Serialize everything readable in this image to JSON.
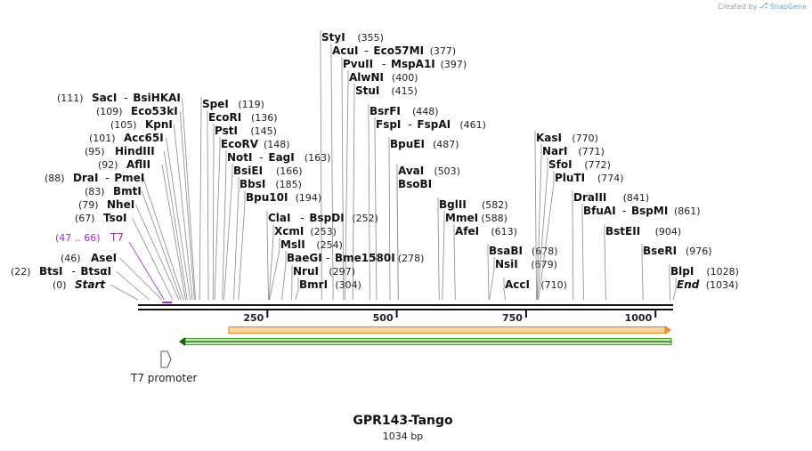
{
  "credit": {
    "prefix": "Created by",
    "brand": "SnapGene"
  },
  "map": {
    "title": "GPR143-Tango",
    "length_label": "1034 bp",
    "length": 1034,
    "ticks": [
      "250",
      "500",
      "750",
      "1000"
    ],
    "tick_values": [
      250,
      500,
      750,
      1000
    ],
    "sites": [
      {
        "name": "StyI",
        "pos": "(355)",
        "at": 355
      },
      {
        "name": "AcuI",
        "name2": "Eco57MI",
        "pos": "(377)",
        "at": 377
      },
      {
        "name": "PvuII",
        "name2": "MspA1I",
        "pos": "(397)",
        "at": 397
      },
      {
        "name": "AlwNI",
        "pos": "(400)",
        "at": 400
      },
      {
        "name": "StuI",
        "pos": "(415)",
        "at": 415
      },
      {
        "name": "BsrFI",
        "pos": "(448)",
        "at": 448
      },
      {
        "name": "FspI",
        "name2": "FspAI",
        "pos": "(461)",
        "at": 461
      },
      {
        "name": "BpuEI",
        "pos": "(487)",
        "at": 487
      },
      {
        "name": "AvaI",
        "pos": "(503)",
        "at": 503
      },
      {
        "name": "BsoBI",
        "pos": "",
        "at": 503
      },
      {
        "name": "SacI",
        "name2": "BsiHKAI",
        "pos": "(111)",
        "at": 111
      },
      {
        "name": "Eco53kI",
        "pos": "(109)",
        "at": 109
      },
      {
        "name": "KpnI",
        "pos": "(105)",
        "at": 105
      },
      {
        "name": "Acc65I",
        "pos": "(101)",
        "at": 101
      },
      {
        "name": "HindIII",
        "pos": "(95)",
        "at": 95
      },
      {
        "name": "AflII",
        "pos": "(92)",
        "at": 92
      },
      {
        "name": "DraI",
        "name2": "PmeI",
        "pos": "(88)",
        "at": 88
      },
      {
        "name": "BmtI",
        "pos": "(83)",
        "at": 83
      },
      {
        "name": "NheI",
        "pos": "(79)",
        "at": 79
      },
      {
        "name": "TsoI",
        "pos": "(67)",
        "at": 67
      },
      {
        "name": "AseI",
        "pos": "(46)",
        "at": 46
      },
      {
        "name": "BtsI",
        "name2": "BtsαI",
        "pos": "(22)",
        "at": 22
      },
      {
        "name": "Start",
        "pos": "(0)",
        "at": 0
      },
      {
        "name": "SpeI",
        "pos": "(119)",
        "at": 119
      },
      {
        "name": "EcoRI",
        "pos": "(136)",
        "at": 136
      },
      {
        "name": "PstI",
        "pos": "(145)",
        "at": 145
      },
      {
        "name": "EcoRV",
        "pos": "(148)",
        "at": 148
      },
      {
        "name": "NotI",
        "name2": "EagI",
        "pos": "(163)",
        "at": 163
      },
      {
        "name": "BsiEI",
        "pos": "(166)",
        "at": 166
      },
      {
        "name": "BbsI",
        "pos": "(185)",
        "at": 185
      },
      {
        "name": "Bpu10I",
        "pos": "(194)",
        "at": 194
      },
      {
        "name": "ClaI",
        "name2": "BspDI",
        "pos": "(252)",
        "at": 252
      },
      {
        "name": "XcmI",
        "pos": "(253)",
        "at": 253
      },
      {
        "name": "MslI",
        "pos": "(254)",
        "at": 254
      },
      {
        "name": "BaeGI",
        "name2": "Bme1580I",
        "pos": "(278)",
        "at": 278
      },
      {
        "name": "NruI",
        "pos": "(297)",
        "at": 297
      },
      {
        "name": "BmrI",
        "pos": "(304)",
        "at": 304
      },
      {
        "name": "BglII",
        "pos": "(582)",
        "at": 582
      },
      {
        "name": "MmeI",
        "pos": "(588)",
        "at": 588
      },
      {
        "name": "AfeI",
        "pos": "(613)",
        "at": 613
      },
      {
        "name": "BsaBI",
        "pos": "(678)",
        "at": 678
      },
      {
        "name": "NsiI",
        "pos": "(679)",
        "at": 679
      },
      {
        "name": "AccI",
        "pos": "(710)",
        "at": 710
      },
      {
        "name": "KasI",
        "pos": "(770)",
        "at": 770
      },
      {
        "name": "NarI",
        "pos": "(771)",
        "at": 771
      },
      {
        "name": "SfoI",
        "pos": "(772)",
        "at": 772
      },
      {
        "name": "PluTI",
        "pos": "(774)",
        "at": 774
      },
      {
        "name": "DraIII",
        "pos": "(841)",
        "at": 841
      },
      {
        "name": "BfuAI",
        "name2": "BspMI",
        "pos": "(861)",
        "at": 861
      },
      {
        "name": "BstEII",
        "pos": "(904)",
        "at": 904
      },
      {
        "name": "BseRI",
        "pos": "(976)",
        "at": 976
      },
      {
        "name": "BlpI",
        "pos": "(1028)",
        "at": 1028
      },
      {
        "name": "End",
        "pos": "(1034)",
        "at": 1034
      }
    ],
    "primer": {
      "name": "T7",
      "pos": "(47 .. 66)",
      "start": 47,
      "end": 66,
      "color": "#9b30c8"
    },
    "features": [
      {
        "name": "T7 promoter",
        "start": 47,
        "end": 66
      },
      {
        "name": "orange-feature",
        "color": "#e88a2a"
      },
      {
        "name": "green-feature",
        "color": "#4aa52e"
      }
    ]
  }
}
